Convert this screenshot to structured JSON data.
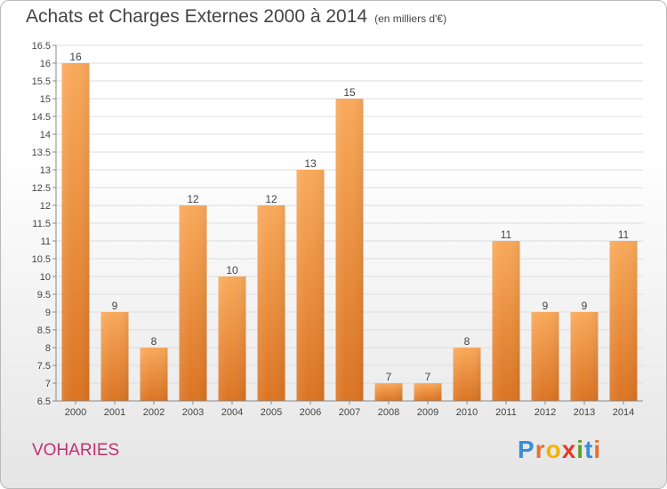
{
  "title": "Achats et Charges Externes 2000 à 2014",
  "subtitle": "(en milliers d'€)",
  "commune": "VOHARIES",
  "brand": {
    "letters": [
      "P",
      "r",
      "o",
      "x",
      "i",
      "t",
      "i"
    ],
    "colors": [
      "#3a8fd1",
      "#e8702a",
      "#f0b400",
      "#e43a2a",
      "#5aa02c",
      "#3a8fd1",
      "#e8702a"
    ]
  },
  "colors": {
    "bar_top": "#f9a95a",
    "bar_bottom": "#db7423",
    "axis": "#888888",
    "grid": "#dddddd",
    "text": "#444444"
  },
  "chart_data": {
    "type": "bar",
    "categories": [
      "2000",
      "2001",
      "2002",
      "2003",
      "2004",
      "2005",
      "2006",
      "2007",
      "2008",
      "2009",
      "2010",
      "2011",
      "2012",
      "2013",
      "2014"
    ],
    "values": [
      16,
      9,
      8,
      12,
      10,
      12,
      13,
      15,
      7,
      7,
      8,
      11,
      9,
      9,
      11
    ],
    "ylim": [
      6.5,
      16.5
    ],
    "yticks": [
      "6.5",
      "7",
      "7.5",
      "8",
      "8.5",
      "9",
      "9.5",
      "10",
      "10.5",
      "11",
      "11.5",
      "12",
      "12.5",
      "13",
      "13.5",
      "14",
      "14.5",
      "15",
      "15.5",
      "16",
      "16.5"
    ],
    "title": "Achats et Charges Externes 2000 à 2014",
    "xlabel": "",
    "ylabel": "",
    "grid": true,
    "legend": "none"
  }
}
